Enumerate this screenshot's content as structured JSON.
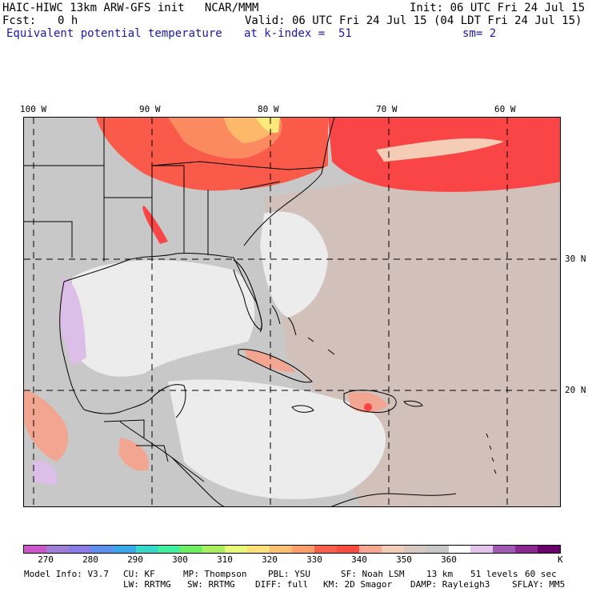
{
  "header": {
    "model_line": "HAIC-HIWC 13km ARW-GFS init   NCAR/MMM",
    "init": "Init: 06 UTC Fri 24 Jul 15",
    "fcst_label": "Fcst:",
    "fcst_value": "0 h",
    "valid": "Valid: 06 UTC Fri 24 Jul 15 (04 LDT Fri 24 Jul 15)",
    "field_name": "Equivalent potential temperature",
    "level": "at k-index =  51",
    "smoothing": "sm= 2"
  },
  "map": {
    "lon_labels": [
      "100 W",
      "90 W",
      "80 W",
      "70 W",
      "60 W"
    ],
    "lat_labels": [
      "30 N",
      "20 N"
    ],
    "grid_lons_deg": [
      -100,
      -90,
      -80,
      -70,
      -60
    ],
    "grid_lats_deg": [
      30,
      20
    ],
    "colors": {
      "c340": "#f2a590",
      "c345": "#f5cdb6",
      "c350": "#d2c0ba",
      "c355": "#c8c8c8",
      "c360": "#ececec",
      "c365": "#dcbee8",
      "c335": "#fa5a4a",
      "c330": "#f94545",
      "c325": "#fb8a60",
      "c320": "#fdb86a",
      "c315": "#fde87a"
    }
  },
  "colorbar": {
    "unit": "K",
    "colors": [
      "#cc55cc",
      "#9f7fd6",
      "#8a7be6",
      "#5b8ff0",
      "#3aa8e8",
      "#38d8c8",
      "#40f0a0",
      "#6cf060",
      "#a8f060",
      "#e8f878",
      "#fce078",
      "#fcc070",
      "#fc9d6a",
      "#f8604c",
      "#f84c3c",
      "#f8a890",
      "#f2cdb8",
      "#d8c8c2",
      "#c8c8c8",
      "#ffffff",
      "#e2c4ec",
      "#a05ab4",
      "#8a2890",
      "#6a006a"
    ],
    "ticks": [
      "270",
      "280",
      "290",
      "300",
      "310",
      "320",
      "330",
      "340",
      "350",
      "360"
    ]
  },
  "footer": {
    "line1": [
      "Model Info: V3.7",
      "CU: KF",
      "MP: Thompson",
      "PBL: YSU",
      "SF: Noah LSM",
      "13 km",
      "51 levels",
      "60 sec"
    ],
    "line2": [
      "LW: RRTMG",
      "SW: RRTMG",
      "DIFF: full",
      "KM: 2D Smagor",
      "DAMP: Rayleigh3",
      "SFLAY: MM5"
    ]
  }
}
